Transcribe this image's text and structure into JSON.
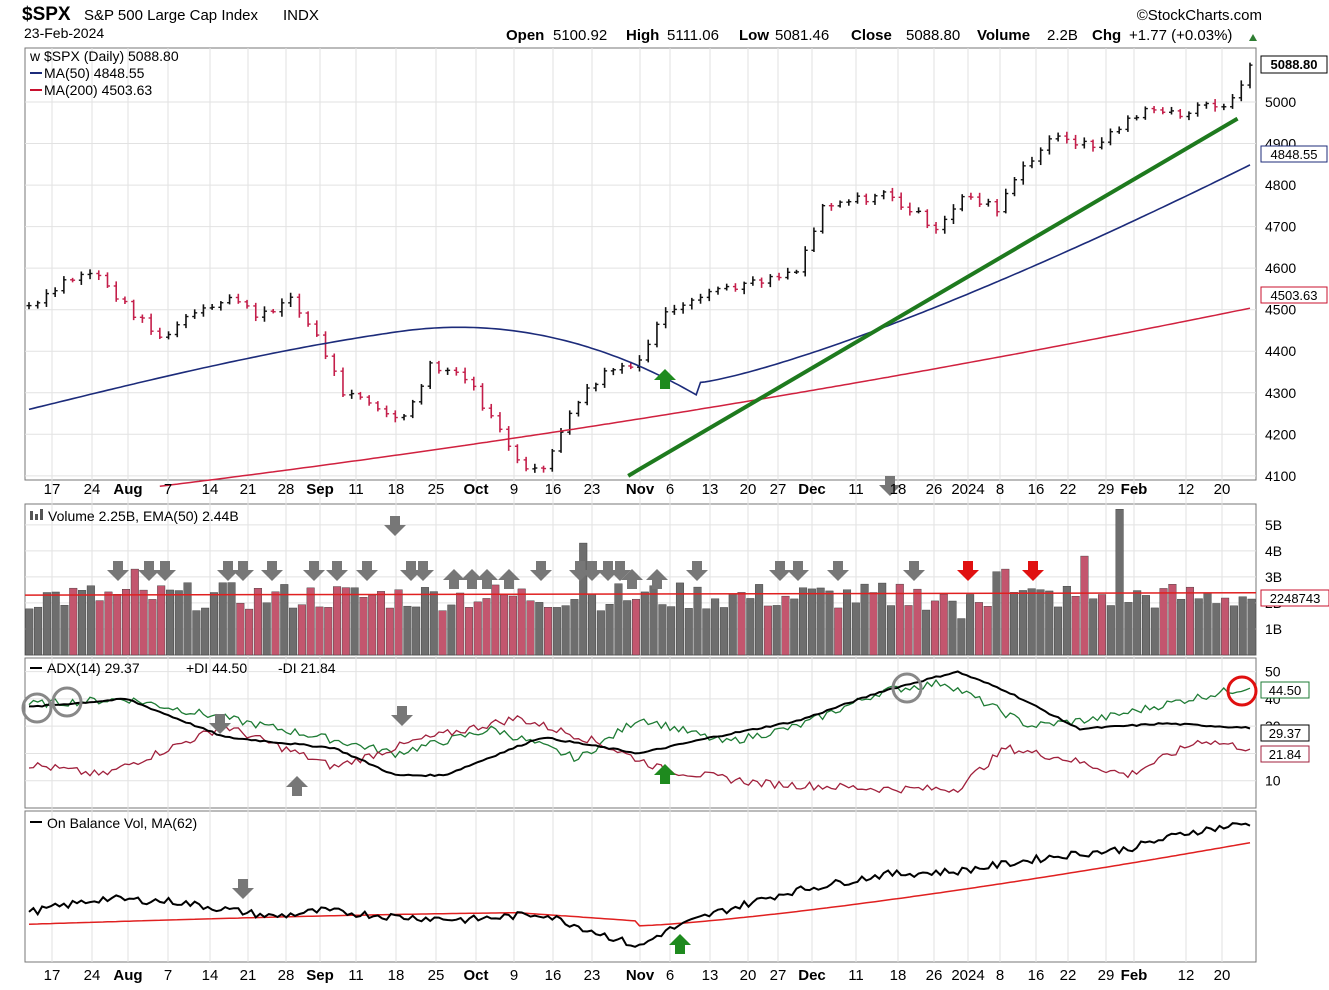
{
  "header": {
    "symbol": "$SPX",
    "name": "S&P 500 Large Cap Index",
    "exchange": "INDX",
    "date": "23-Feb-2024",
    "source": "©StockCharts.com",
    "open_label": "Open",
    "open": "5100.92",
    "high_label": "High",
    "high": "5111.06",
    "low_label": "Low",
    "low": "5081.46",
    "close_label": "Close",
    "close": "5088.80",
    "volume_label": "Volume",
    "volume": "2.2B",
    "chg_label": "Chg",
    "chg": "+1.77 (+0.03%)"
  },
  "price_panel": {
    "legend": [
      {
        "text": "$SPX (Daily) 5088.80",
        "color": "#000000"
      },
      {
        "text": "MA(50) 4848.55",
        "color": "#1c2b7a"
      },
      {
        "text": "MA(200) 4503.63",
        "color": "#c8102e"
      }
    ],
    "value_tags": [
      "5088.80",
      "4848.55",
      "4503.63"
    ]
  },
  "volume_panel": {
    "legend": "Volume 2.25B, EMA(50) 2.44B",
    "value_tag": "2248743"
  },
  "adx_panel": {
    "legend_adx": "ADX(14) 29.37",
    "legend_pdi": "+DI 44.50",
    "legend_mdi": "-DI 21.84",
    "value_tags": [
      "44.50",
      "29.37",
      "21.84"
    ]
  },
  "obv_panel": {
    "legend": "On Balance Vol, MA(62)"
  },
  "chart_data": {
    "type": "line",
    "x_tick_labels": [
      "17",
      "24",
      "Aug",
      "7",
      "14",
      "21",
      "28",
      "Sep",
      "11",
      "18",
      "25",
      "Oct",
      "9",
      "16",
      "23",
      "Nov",
      "6",
      "13",
      "20",
      "27",
      "Dec",
      "11",
      "18",
      "26",
      "2024",
      "8",
      "16",
      "22",
      "29",
      "Feb",
      "12",
      "20"
    ],
    "price": {
      "ylim": [
        4090,
        5130
      ],
      "y_ticks": [
        4100,
        4200,
        4300,
        4400,
        4500,
        4600,
        4700,
        4800,
        4900,
        5000
      ],
      "anchors": [
        [
          0,
          4510
        ],
        [
          8,
          4570
        ],
        [
          15,
          4590
        ],
        [
          22,
          4510
        ],
        [
          30,
          4430
        ],
        [
          38,
          4500
        ],
        [
          46,
          4530
        ],
        [
          52,
          4490
        ],
        [
          60,
          4520
        ],
        [
          66,
          4440
        ],
        [
          72,
          4300
        ],
        [
          80,
          4260
        ],
        [
          86,
          4240
        ],
        [
          92,
          4370
        ],
        [
          100,
          4340
        ],
        [
          106,
          4240
        ],
        [
          113,
          4130
        ],
        [
          118,
          4110
        ],
        [
          124,
          4260
        ],
        [
          132,
          4350
        ],
        [
          140,
          4380
        ],
        [
          146,
          4500
        ],
        [
          154,
          4540
        ],
        [
          160,
          4555
        ],
        [
          168,
          4565
        ],
        [
          176,
          4590
        ],
        [
          182,
          4740
        ],
        [
          188,
          4760
        ],
        [
          196,
          4780
        ],
        [
          202,
          4740
        ],
        [
          208,
          4700
        ],
        [
          214,
          4770
        ],
        [
          222,
          4745
        ],
        [
          228,
          4850
        ],
        [
          236,
          4920
        ],
        [
          244,
          4890
        ],
        [
          250,
          4940
        ],
        [
          258,
          4990
        ],
        [
          264,
          4970
        ],
        [
          270,
          4990
        ],
        [
          276,
          5000
        ],
        [
          280,
          5088.8
        ]
      ],
      "ma50": {
        "start": 4260,
        "end": 4848.55,
        "min": 4325,
        "min_at": 0.55
      },
      "ma200": {
        "start": 4075,
        "end": 4503.63
      },
      "trendline": [
        [
          0.49,
          4100
        ],
        [
          0.985,
          4960
        ]
      ]
    },
    "volume": {
      "y_ticks": [
        "1B",
        "2B",
        "3B",
        "4B",
        "5B"
      ],
      "ylim": [
        0,
        5.8
      ],
      "ema50": 2.44,
      "last": 2.25
    },
    "adx": {
      "y_ticks": [
        10,
        20,
        30,
        40,
        50
      ],
      "ylim": [
        0,
        55
      ],
      "adx_last": 29.37,
      "pdi_last": 44.5,
      "mdi_last": 21.84
    },
    "obv": {
      "ma_period": 62
    }
  }
}
